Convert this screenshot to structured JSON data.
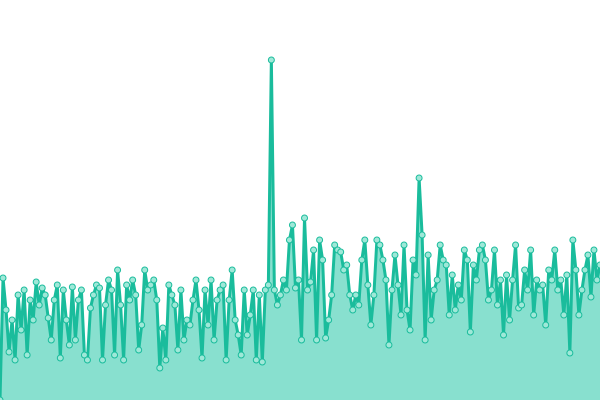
{
  "chart_data": {
    "type": "area",
    "title": "",
    "xlabel": "",
    "ylabel": "",
    "grid": false,
    "legend": "none",
    "ylim": [
      0,
      400
    ],
    "colors": {
      "line": "#1abc9c",
      "fill": "#88e0cf",
      "marker_fill": "#9fe8d8"
    },
    "values": [
      0,
      122,
      90,
      48,
      80,
      40,
      105,
      70,
      110,
      45,
      100,
      80,
      118,
      95,
      112,
      105,
      82,
      60,
      100,
      115,
      42,
      110,
      80,
      55,
      113,
      60,
      100,
      110,
      45,
      40,
      92,
      105,
      115,
      112,
      40,
      95,
      120,
      110,
      45,
      130,
      95,
      40,
      115,
      100,
      120,
      105,
      50,
      75,
      130,
      110,
      115,
      120,
      100,
      32,
      72,
      40,
      115,
      105,
      95,
      50,
      110,
      60,
      80,
      75,
      100,
      120,
      90,
      42,
      110,
      75,
      120,
      60,
      100,
      110,
      115,
      40,
      100,
      130,
      80,
      65,
      45,
      110,
      65,
      85,
      110,
      40,
      105,
      38,
      110,
      115,
      340,
      110,
      95,
      105,
      120,
      110,
      160,
      175,
      112,
      120,
      60,
      182,
      110,
      118,
      150,
      60,
      160,
      140,
      62,
      80,
      105,
      155,
      150,
      148,
      130,
      135,
      105,
      90,
      105,
      95,
      140,
      160,
      115,
      75,
      105,
      160,
      155,
      140,
      120,
      55,
      110,
      145,
      115,
      85,
      155,
      90,
      70,
      140,
      125,
      222,
      165,
      60,
      145,
      80,
      110,
      120,
      155,
      140,
      135,
      85,
      125,
      90,
      115,
      100,
      150,
      140,
      68,
      135,
      120,
      150,
      155,
      140,
      100,
      110,
      150,
      95,
      120,
      65,
      125,
      80,
      120,
      155,
      92,
      95,
      130,
      110,
      150,
      85,
      120,
      110,
      115,
      75,
      130,
      120,
      150,
      110,
      120,
      85,
      125,
      47,
      160,
      130,
      85,
      110,
      130,
      145,
      103,
      150,
      120,
      135
    ]
  }
}
